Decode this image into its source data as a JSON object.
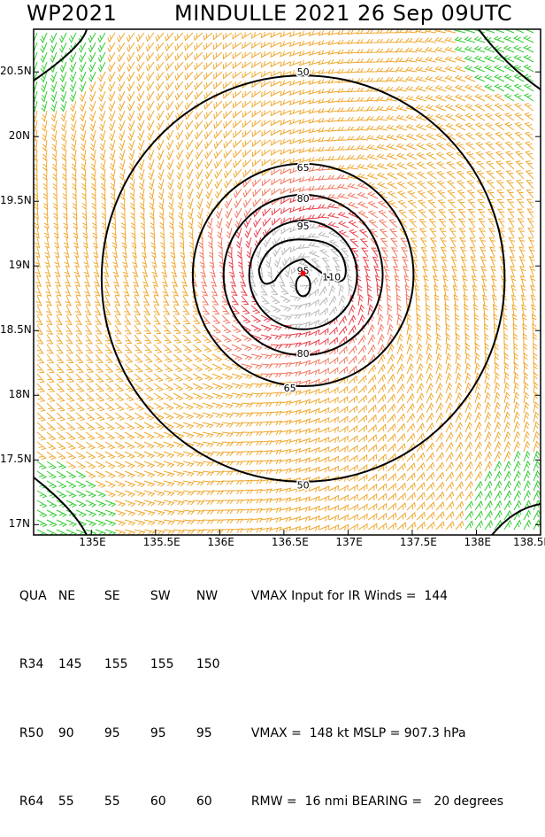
{
  "header": {
    "storm_id": "WP2021",
    "storm_info": "MINDULLE 2021 26 Sep 09UTC"
  },
  "chart_data": {
    "type": "contour",
    "x_ticks": [
      "135E",
      "135.5E",
      "136E",
      "136.5E",
      "137E",
      "137.5E",
      "138E",
      "138.5E"
    ],
    "y_ticks": [
      "20.5N",
      "20N",
      "19.5N",
      "19N",
      "18.5N",
      "18N",
      "17.5N",
      "17N"
    ],
    "xlim": [
      134.55,
      138.5
    ],
    "ylim": [
      16.92,
      20.83
    ],
    "center": {
      "lon": 136.65,
      "lat": 18.93
    },
    "contours": [
      {
        "label": "50",
        "radius_deg": 1.57
      },
      {
        "label": "65",
        "radius_deg": 0.86
      },
      {
        "label": "80",
        "radius_deg": 0.62
      },
      {
        "label": "95",
        "radius_deg": 0.42
      },
      {
        "label": "110",
        "radius_deg": 0.21
      },
      {
        "label": "95",
        "radius_deg": 0.12
      }
    ],
    "barb_colors": {
      "low": "#33cc33",
      "mid": "#f0a830",
      "high": "#f07860",
      "vhigh": "#e8404a",
      "extreme": "#b8b8b8"
    },
    "center_marker_color": "#ff0000"
  },
  "table": {
    "header": [
      "QUA",
      "NE",
      "SE",
      "SW",
      "NW"
    ],
    "header_note": "VMAX Input for IR Winds =  144",
    "rows": [
      {
        "label": "R34",
        "values": [
          "145",
          "155",
          "155",
          "150"
        ],
        "note": ""
      },
      {
        "label": "R50",
        "values": [
          "90",
          "95",
          "95",
          "95"
        ],
        "note": "VMAX =  148 kt MSLP = 907.3 hPa"
      },
      {
        "label": "R64",
        "values": [
          "55",
          "55",
          "60",
          "60"
        ],
        "note": "RMW =  16 nmi BEARING =   20 degrees"
      }
    ]
  }
}
